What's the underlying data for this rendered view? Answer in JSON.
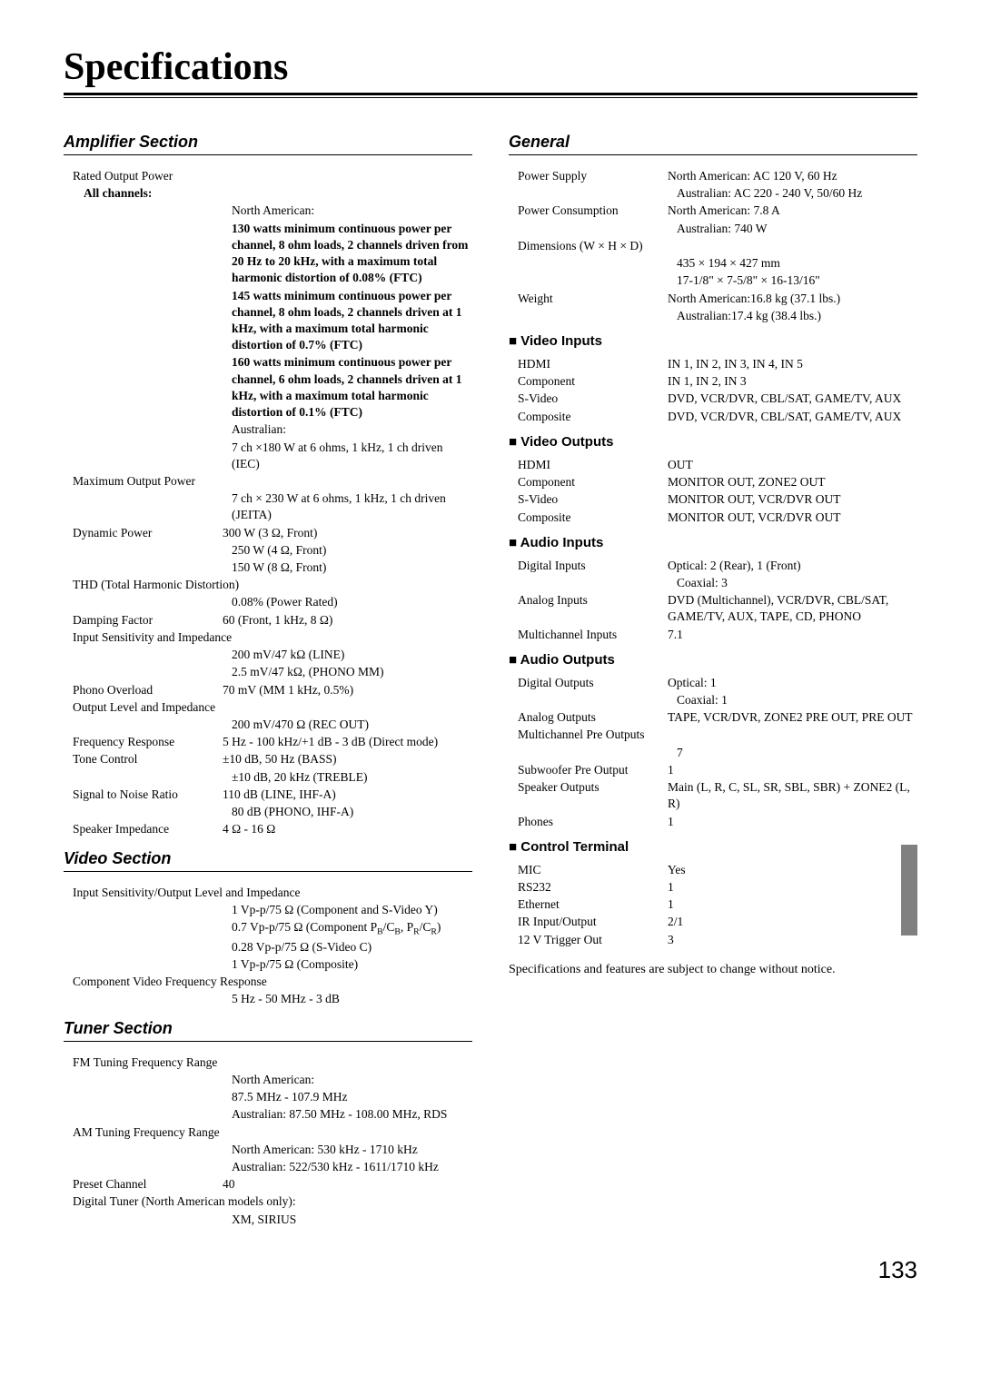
{
  "title": "Specifications",
  "pageNumber": "133",
  "left": {
    "amplifier": {
      "heading": "Amplifier Section",
      "rows": [
        {
          "type": "full",
          "text": "Rated Output Power"
        },
        {
          "type": "full",
          "text": "All channels:",
          "bold": true,
          "indent": true
        },
        {
          "type": "val",
          "text": "North American:"
        },
        {
          "type": "val",
          "text": "130 watts minimum continuous power per channel, 8 ohm loads, 2 channels driven from 20 Hz to 20 kHz, with a maximum total harmonic distortion of 0.08% (FTC)",
          "bold": true
        },
        {
          "type": "val",
          "text": "145 watts minimum continuous power per channel, 8 ohm loads, 2 channels driven at 1 kHz, with a maximum total harmonic distortion of 0.7% (FTC)",
          "bold": true
        },
        {
          "type": "val",
          "text": "160 watts minimum continuous power per channel, 6 ohm loads, 2 channels driven at 1 kHz, with a maximum total harmonic distortion of 0.1% (FTC)",
          "bold": true
        },
        {
          "type": "val",
          "text": "Australian:"
        },
        {
          "type": "val",
          "text": "7 ch ×180 W at 6 ohms, 1 kHz, 1 ch driven (IEC)"
        },
        {
          "type": "full",
          "text": "Maximum Output Power"
        },
        {
          "type": "val",
          "text": "7 ch × 230 W at 6 ohms, 1 kHz, 1 ch driven (JEITA)"
        },
        {
          "type": "row",
          "label": "Dynamic Power",
          "value": "300 W (3 Ω, Front)"
        },
        {
          "type": "val",
          "text": "250 W (4 Ω, Front)"
        },
        {
          "type": "val",
          "text": "150 W (8 Ω, Front)"
        },
        {
          "type": "full",
          "text": "THD (Total Harmonic Distortion)"
        },
        {
          "type": "val",
          "text": "0.08% (Power Rated)"
        },
        {
          "type": "row",
          "label": "Damping Factor",
          "value": "60 (Front, 1 kHz, 8 Ω)"
        },
        {
          "type": "full",
          "text": "Input Sensitivity and Impedance"
        },
        {
          "type": "val",
          "text": "200 mV/47 kΩ (LINE)"
        },
        {
          "type": "val",
          "text": "2.5 mV/47 kΩ, (PHONO MM)"
        },
        {
          "type": "row",
          "label": "Phono Overload",
          "value": "70 mV (MM 1 kHz, 0.5%)"
        },
        {
          "type": "full",
          "text": "Output Level and Impedance"
        },
        {
          "type": "val",
          "text": "200 mV/470 Ω (REC OUT)"
        },
        {
          "type": "row",
          "label": "Frequency Response",
          "value": "5 Hz - 100 kHz/+1 dB - 3 dB (Direct mode)"
        },
        {
          "type": "row",
          "label": "Tone Control",
          "value": "±10 dB, 50 Hz (BASS)"
        },
        {
          "type": "val",
          "text": "±10 dB, 20 kHz (TREBLE)"
        },
        {
          "type": "row",
          "label": "Signal to Noise Ratio",
          "value": "110 dB (LINE, IHF-A)"
        },
        {
          "type": "val",
          "text": "80 dB (PHONO, IHF-A)"
        },
        {
          "type": "row",
          "label": "Speaker Impedance",
          "value": "4 Ω - 16 Ω"
        }
      ]
    },
    "video": {
      "heading": "Video Section",
      "rows": [
        {
          "type": "full",
          "text": "Input Sensitivity/Output Level and Impedance"
        },
        {
          "type": "val",
          "text": "1 Vp-p/75 Ω (Component and S-Video Y)"
        },
        {
          "type": "val",
          "html": "0.7 Vp-p/75 Ω (Component P<sub>B</sub>/C<sub>B</sub>, P<sub>R</sub>/C<sub>R</sub>)"
        },
        {
          "type": "val",
          "text": "0.28 Vp-p/75 Ω (S-Video C)"
        },
        {
          "type": "val",
          "text": "1 Vp-p/75 Ω (Composite)"
        },
        {
          "type": "full",
          "text": "Component Video Frequency Response"
        },
        {
          "type": "val",
          "text": "5 Hz - 50 MHz - 3 dB"
        }
      ]
    },
    "tuner": {
      "heading": "Tuner Section",
      "rows": [
        {
          "type": "full",
          "text": "FM Tuning Frequency Range"
        },
        {
          "type": "val",
          "text": "North American:"
        },
        {
          "type": "val",
          "text": "87.5 MHz - 107.9 MHz"
        },
        {
          "type": "val",
          "text": "Australian: 87.50 MHz - 108.00 MHz, RDS"
        },
        {
          "type": "full",
          "text": "AM Tuning Frequency Range"
        },
        {
          "type": "val",
          "text": "North American: 530 kHz - 1710 kHz"
        },
        {
          "type": "val",
          "text": "Australian: 522/530 kHz - 1611/1710 kHz"
        },
        {
          "type": "row",
          "label": "Preset Channel",
          "value": "40"
        },
        {
          "type": "full",
          "text": "Digital Tuner (North American models only):"
        },
        {
          "type": "val",
          "text": "XM, SIRIUS"
        }
      ]
    }
  },
  "right": {
    "general": {
      "heading": "General",
      "rows": [
        {
          "type": "row",
          "label": "Power Supply",
          "value": "North American: AC 120 V, 60 Hz"
        },
        {
          "type": "val",
          "text": "Australian:  AC 220 - 240 V, 50/60 Hz"
        },
        {
          "type": "row",
          "label": "Power Consumption",
          "value": "North American: 7.8 A"
        },
        {
          "type": "val",
          "text": "Australian: 740 W"
        },
        {
          "type": "full",
          "text": "Dimensions (W × H × D)"
        },
        {
          "type": "val",
          "text": "435 × 194 × 427 mm"
        },
        {
          "type": "val",
          "text": "17-1/8\" × 7-5/8\" × 16-13/16\""
        },
        {
          "type": "row",
          "label": "Weight",
          "value": "North American:16.8 kg (37.1 lbs.)"
        },
        {
          "type": "val",
          "text": "Australian:17.4 kg (38.4 lbs.)"
        }
      ]
    },
    "videoInputs": {
      "heading": "Video Inputs",
      "rows": [
        {
          "type": "row",
          "label": "HDMI",
          "value": "IN 1, IN 2, IN 3, IN 4, IN 5"
        },
        {
          "type": "row",
          "label": "Component",
          "value": "IN 1, IN 2, IN 3"
        },
        {
          "type": "row",
          "label": "S-Video",
          "value": "DVD, VCR/DVR, CBL/SAT, GAME/TV, AUX"
        },
        {
          "type": "row",
          "label": "Composite",
          "value": "DVD, VCR/DVR, CBL/SAT, GAME/TV, AUX"
        }
      ]
    },
    "videoOutputs": {
      "heading": "Video Outputs",
      "rows": [
        {
          "type": "row",
          "label": "HDMI",
          "value": "OUT"
        },
        {
          "type": "row",
          "label": "Component",
          "value": "MONITOR OUT, ZONE2 OUT"
        },
        {
          "type": "row",
          "label": "S-Video",
          "value": "MONITOR OUT, VCR/DVR OUT"
        },
        {
          "type": "row",
          "label": "Composite",
          "value": "MONITOR OUT, VCR/DVR OUT"
        }
      ]
    },
    "audioInputs": {
      "heading": "Audio Inputs",
      "rows": [
        {
          "type": "row",
          "label": "Digital Inputs",
          "value": "Optical: 2 (Rear), 1 (Front)"
        },
        {
          "type": "val",
          "text": "Coaxial: 3"
        },
        {
          "type": "row",
          "label": "Analog Inputs",
          "value": "DVD (Multichannel), VCR/DVR, CBL/SAT, GAME/TV, AUX, TAPE, CD, PHONO"
        },
        {
          "type": "row",
          "label": "Multichannel Inputs",
          "value": "7.1"
        }
      ]
    },
    "audioOutputs": {
      "heading": "Audio Outputs",
      "rows": [
        {
          "type": "row",
          "label": "Digital Outputs",
          "value": "Optical: 1"
        },
        {
          "type": "val",
          "text": "Coaxial: 1"
        },
        {
          "type": "row",
          "label": "Analog Outputs",
          "value": "TAPE, VCR/DVR, ZONE2 PRE OUT, PRE OUT"
        },
        {
          "type": "full",
          "text": "Multichannel Pre Outputs"
        },
        {
          "type": "val",
          "text": "7"
        },
        {
          "type": "row",
          "label": "Subwoofer Pre Output",
          "value": "1"
        },
        {
          "type": "row",
          "label": "Speaker Outputs",
          "value": "Main (L, R, C, SL, SR, SBL, SBR) + ZONE2 (L, R)"
        },
        {
          "type": "row",
          "label": "Phones",
          "value": "1"
        }
      ]
    },
    "controlTerminal": {
      "heading": "Control Terminal",
      "rows": [
        {
          "type": "row",
          "label": "MIC",
          "value": "Yes"
        },
        {
          "type": "row",
          "label": "RS232",
          "value": "1"
        },
        {
          "type": "row",
          "label": "Ethernet",
          "value": "1"
        },
        {
          "type": "row",
          "label": "IR Input/Output",
          "value": "2/1"
        },
        {
          "type": "row",
          "label": "12 V Trigger Out",
          "value": "3"
        }
      ]
    },
    "footnote": "Specifications and features are subject to change without notice."
  }
}
